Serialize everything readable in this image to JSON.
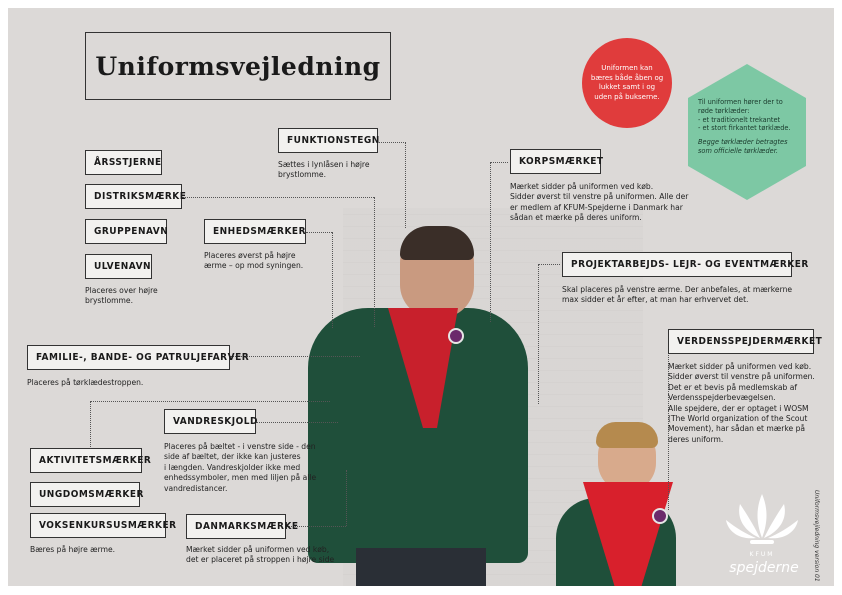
{
  "title": "Uniformsvejledning",
  "labels": {
    "aarsstjerne": "ÅRSSTJERNE",
    "distriktsmaerke": "DISTRIKSMÆRKE",
    "gruppenavn": "GRUPPENAVN",
    "ulvenavn": "ULVENAVN",
    "enhedsmaerker": "ENHEDSMÆRKER",
    "funktionstegn": "FUNKTIONSTEGN",
    "korpsmaerket": "KORPSMÆRKET",
    "projekt": "PROJEKTARBEJDS- LEJR- OG EVENTMÆRKER",
    "familie": "FAMILIE-, BANDE- OG PATRULJEFARVER",
    "verdens": "VERDENSSPEJDERMÆRKET",
    "vandreskjold": "VANDRESKJOLD",
    "aktivitet": "AKTIVITETSMÆRKER",
    "ungdom": "UNGDOMSMÆRKER",
    "voksen": "VOKSENKURSUSMÆRKER",
    "danmark": "DANMARKSMÆRKE"
  },
  "descriptions": {
    "ulvenavn": [
      "Placeres over højre",
      "brystlomme."
    ],
    "enhedsmaerker": [
      "Placeres øverst på højre",
      "ærme – op mod syningen."
    ],
    "funktionstegn": [
      "Sættes i lynlåsen i højre",
      "brystlomme."
    ],
    "korpsmaerket": [
      "Mærket sidder på uniformen ved køb.",
      "Sidder øverst til venstre på uniformen. Alle der",
      "er medlem af KFUM-Spejderne i Danmark har",
      "sådan et mærke på deres uniform."
    ],
    "projekt": [
      "Skal placeres på venstre ærme. Der anbefales, at mærkerne",
      "max sidder et år efter, at man har erhvervet det."
    ],
    "familie": [
      "Placeres på tørklædestroppen."
    ],
    "verdens": [
      "Mærket sidder på uniformen ved køb.",
      "Sidder øverst til venstre på uniformen.",
      "Det er et bevis på medlemskab af",
      "Verdensspejderbevægelsen.",
      "Alle spejdere, der er optaget i WOSM",
      "(The World organization of the Scout",
      "Movement), har sådan et mærke på",
      "deres uniform."
    ],
    "vandreskjold": [
      "Placeres på bæltet - i venstre side - den",
      "side af bæltet, der ikke kan justeres",
      "i længden. Vandreskjolder ikke med",
      "enhedssymboler, men med liljen på alle",
      "vandredistancer."
    ],
    "voksen": [
      "Bæres på højre ærme."
    ],
    "danmark": [
      "Mærket sidder på uniformen ved køb,",
      "det er placeret på stroppen i højre side"
    ]
  },
  "circle_text": "Uniformen kan bæres både åben og lukket samt i og uden på bukserne.",
  "hex_text": {
    "lines": [
      "Til uniformen hører der to",
      "røde tørklæder:",
      "- et traditionelt trekantet",
      "- et stort firkantet tørklæde."
    ],
    "italic": [
      "Begge tørklæder betragtes",
      "som officielle tørklæder."
    ]
  },
  "logo": {
    "top": "KFUM",
    "name": "spejderne"
  },
  "side_note": "Uniformsvejledning version 01",
  "colors": {
    "background": "#dcd9d7",
    "red_circle": "#e03c3c",
    "green_hex": "#7dc8a4",
    "uniform_green": "#1f4f3a",
    "scarf_red": "#c8202c"
  }
}
